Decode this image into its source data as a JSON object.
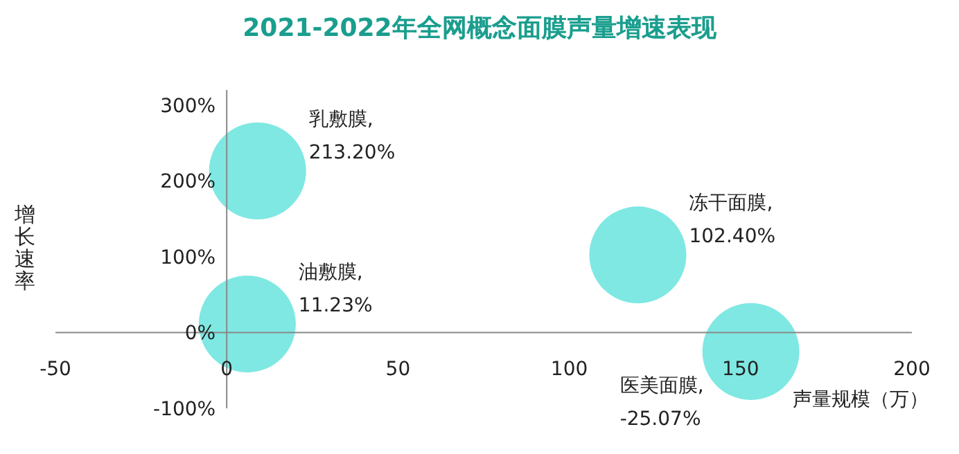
{
  "chart_data": {
    "type": "scatter",
    "title": "2021-2022年全网概念面膜声量增速表现",
    "xlabel": "声量规模（万）",
    "ylabel": "增长速率",
    "series": [
      {
        "name": "乳敷膜,",
        "color": "#7fe8e3",
        "x": [
          9
        ],
        "values": [
          213.2
        ],
        "value_labels": [
          "213.20%"
        ]
      },
      {
        "name": "油敷膜,",
        "color": "#7fe8e3",
        "x": [
          6
        ],
        "values": [
          11.23
        ],
        "value_labels": [
          "11.23%"
        ]
      },
      {
        "name": "冻干面膜,",
        "color": "#7fe8e3",
        "x": [
          120
        ],
        "values": [
          102.4
        ],
        "value_labels": [
          "102.40%"
        ]
      },
      {
        "name": "医美面膜,",
        "color": "#7fe8e3",
        "x": [
          153
        ],
        "values": [
          -25.07
        ],
        "value_labels": [
          "-25.07%"
        ]
      }
    ],
    "marker": "circle",
    "xlim": [
      -50,
      200
    ],
    "xticks": [
      -50,
      0,
      50,
      100,
      150,
      200
    ],
    "ylim": [
      -100,
      320
    ],
    "yticks": [
      {
        "value": -100,
        "label": "-100%"
      },
      {
        "value": 0,
        "label": "0%"
      },
      {
        "value": 100,
        "label": "100%"
      },
      {
        "value": 200,
        "label": "200%"
      },
      {
        "value": 300,
        "label": "300%"
      }
    ]
  }
}
